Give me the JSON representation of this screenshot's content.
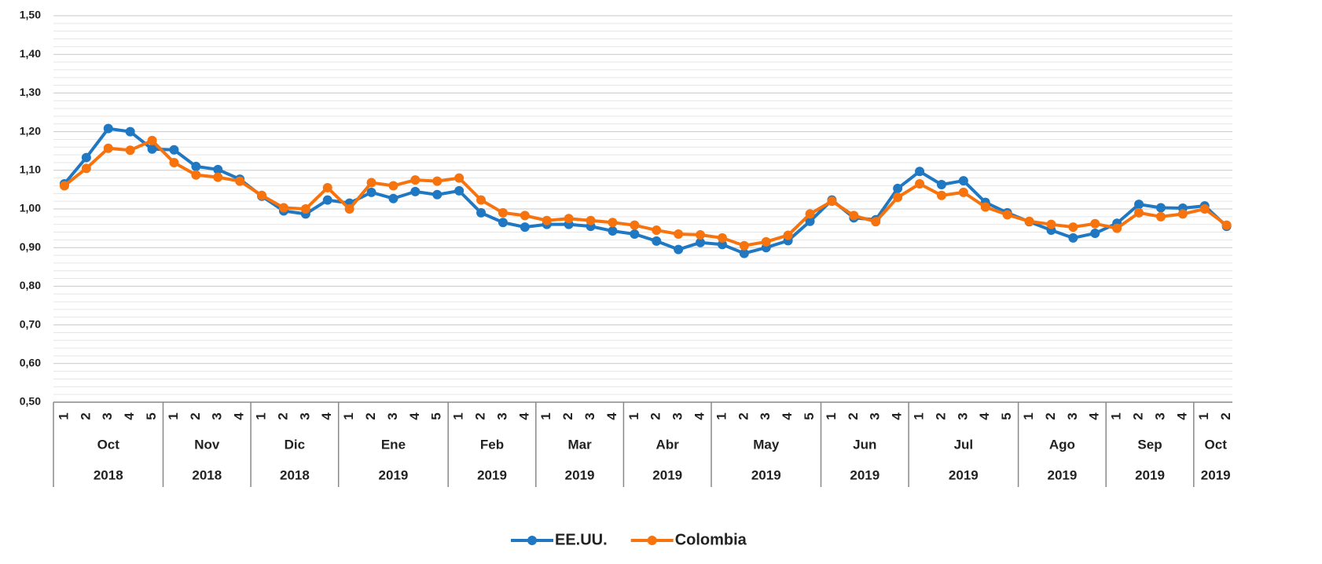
{
  "chart_data": {
    "type": "line",
    "category_groups": [
      {
        "label": "Oct",
        "year": "2018",
        "categories": [
          "1",
          "2",
          "3",
          "4",
          "5"
        ]
      },
      {
        "label": "Nov",
        "year": "2018",
        "categories": [
          "1",
          "2",
          "3",
          "4"
        ]
      },
      {
        "label": "Dic",
        "year": "2018",
        "categories": [
          "1",
          "2",
          "3",
          "4"
        ]
      },
      {
        "label": "Ene",
        "year": "2019",
        "categories": [
          "1",
          "2",
          "3",
          "4",
          "5"
        ]
      },
      {
        "label": "Feb",
        "year": "2019",
        "categories": [
          "1",
          "2",
          "3",
          "4"
        ]
      },
      {
        "label": "Mar",
        "year": "2019",
        "categories": [
          "1",
          "2",
          "3",
          "4"
        ]
      },
      {
        "label": "Abr",
        "year": "2019",
        "categories": [
          "1",
          "2",
          "3",
          "4"
        ]
      },
      {
        "label": "May",
        "year": "2019",
        "categories": [
          "1",
          "2",
          "3",
          "4",
          "5"
        ]
      },
      {
        "label": "Jun",
        "year": "2019",
        "categories": [
          "1",
          "2",
          "3",
          "4"
        ]
      },
      {
        "label": "Jul",
        "year": "2019",
        "categories": [
          "1",
          "2",
          "3",
          "4",
          "5"
        ]
      },
      {
        "label": "Ago",
        "year": "2019",
        "categories": [
          "1",
          "2",
          "3",
          "4"
        ]
      },
      {
        "label": "Sep",
        "year": "2019",
        "categories": [
          "1",
          "2",
          "3",
          "4"
        ]
      },
      {
        "label": "Oct",
        "year": "2019",
        "categories": [
          "1",
          "2"
        ]
      }
    ],
    "series": [
      {
        "name": "EE.UU.",
        "color": "#1f78c1",
        "values": [
          1.065,
          1.133,
          1.208,
          1.2,
          1.155,
          1.153,
          1.11,
          1.102,
          1.077,
          1.033,
          0.995,
          0.987,
          1.023,
          1.015,
          1.043,
          1.027,
          1.045,
          1.037,
          1.047,
          0.99,
          0.965,
          0.953,
          0.96,
          0.96,
          0.955,
          0.943,
          0.935,
          0.917,
          0.895,
          0.913,
          0.908,
          0.885,
          0.9,
          0.918,
          0.968,
          1.023,
          0.977,
          0.972,
          1.053,
          1.097,
          1.063,
          1.073,
          1.017,
          0.99,
          0.967,
          0.945,
          0.925,
          0.937,
          0.963,
          1.012,
          1.003,
          1.002,
          1.008,
          0.955
        ]
      },
      {
        "name": "Colombia",
        "color": "#f7730e",
        "values": [
          1.06,
          1.105,
          1.157,
          1.152,
          1.177,
          1.12,
          1.088,
          1.082,
          1.072,
          1.035,
          1.003,
          1.0,
          1.055,
          1.0,
          1.068,
          1.06,
          1.075,
          1.072,
          1.08,
          1.023,
          0.99,
          0.983,
          0.97,
          0.975,
          0.97,
          0.965,
          0.958,
          0.945,
          0.935,
          0.933,
          0.925,
          0.905,
          0.915,
          0.932,
          0.987,
          1.02,
          0.983,
          0.967,
          1.03,
          1.065,
          1.035,
          1.043,
          1.005,
          0.985,
          0.968,
          0.96,
          0.953,
          0.962,
          0.95,
          0.99,
          0.98,
          0.987,
          1.0,
          0.958
        ]
      }
    ],
    "ylim": [
      0.5,
      1.5
    ],
    "yticks": [
      {
        "value": 0.5,
        "label": "0,50"
      },
      {
        "value": 0.6,
        "label": "0,60"
      },
      {
        "value": 0.7,
        "label": "0,70"
      },
      {
        "value": 0.8,
        "label": "0,80"
      },
      {
        "value": 0.9,
        "label": "0,90"
      },
      {
        "value": 1.0,
        "label": "1,00"
      },
      {
        "value": 1.1,
        "label": "1,10"
      },
      {
        "value": 1.2,
        "label": "1,20"
      },
      {
        "value": 1.3,
        "label": "1,30"
      },
      {
        "value": 1.4,
        "label": "1,40"
      },
      {
        "value": 1.5,
        "label": "1,50"
      }
    ],
    "grid": true
  }
}
